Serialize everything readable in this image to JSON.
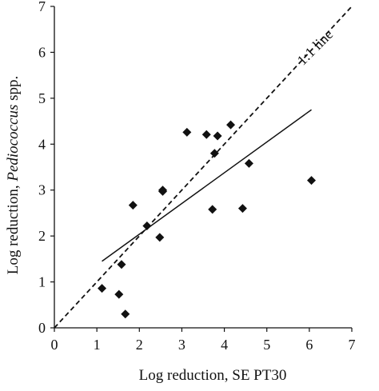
{
  "chart_data": {
    "type": "scatter",
    "xlabel": "Log reduction, SE PT30",
    "ylabel_prefix": "Log reduction, ",
    "ylabel_italic": "Pediococcus",
    "ylabel_suffix": " spp.",
    "xlim": [
      0,
      7
    ],
    "ylim": [
      0,
      7
    ],
    "xticks": [
      0,
      1,
      2,
      3,
      4,
      5,
      6,
      7
    ],
    "yticks": [
      0,
      1,
      2,
      3,
      4,
      5,
      6,
      7
    ],
    "grid": false,
    "points": [
      {
        "x": 1.12,
        "y": 0.86
      },
      {
        "x": 1.52,
        "y": 0.73
      },
      {
        "x": 1.58,
        "y": 1.38
      },
      {
        "x": 1.67,
        "y": 0.3
      },
      {
        "x": 1.85,
        "y": 2.67
      },
      {
        "x": 2.18,
        "y": 2.22
      },
      {
        "x": 2.48,
        "y": 1.97
      },
      {
        "x": 2.55,
        "y": 3.0
      },
      {
        "x": 2.55,
        "y": 2.97
      },
      {
        "x": 3.12,
        "y": 4.26
      },
      {
        "x": 3.58,
        "y": 4.21
      },
      {
        "x": 3.72,
        "y": 2.58
      },
      {
        "x": 3.77,
        "y": 3.8
      },
      {
        "x": 3.84,
        "y": 4.18
      },
      {
        "x": 4.15,
        "y": 4.42
      },
      {
        "x": 4.43,
        "y": 2.6
      },
      {
        "x": 4.58,
        "y": 3.58
      },
      {
        "x": 6.05,
        "y": 3.21
      }
    ],
    "one_to_one_line": {
      "label": "1:1 line",
      "x": [
        0,
        7
      ],
      "y": [
        0,
        7
      ],
      "style": "dashed"
    },
    "regression_line": {
      "x": [
        1.12,
        6.05
      ],
      "y": [
        1.45,
        4.75
      ],
      "style": "solid"
    }
  }
}
